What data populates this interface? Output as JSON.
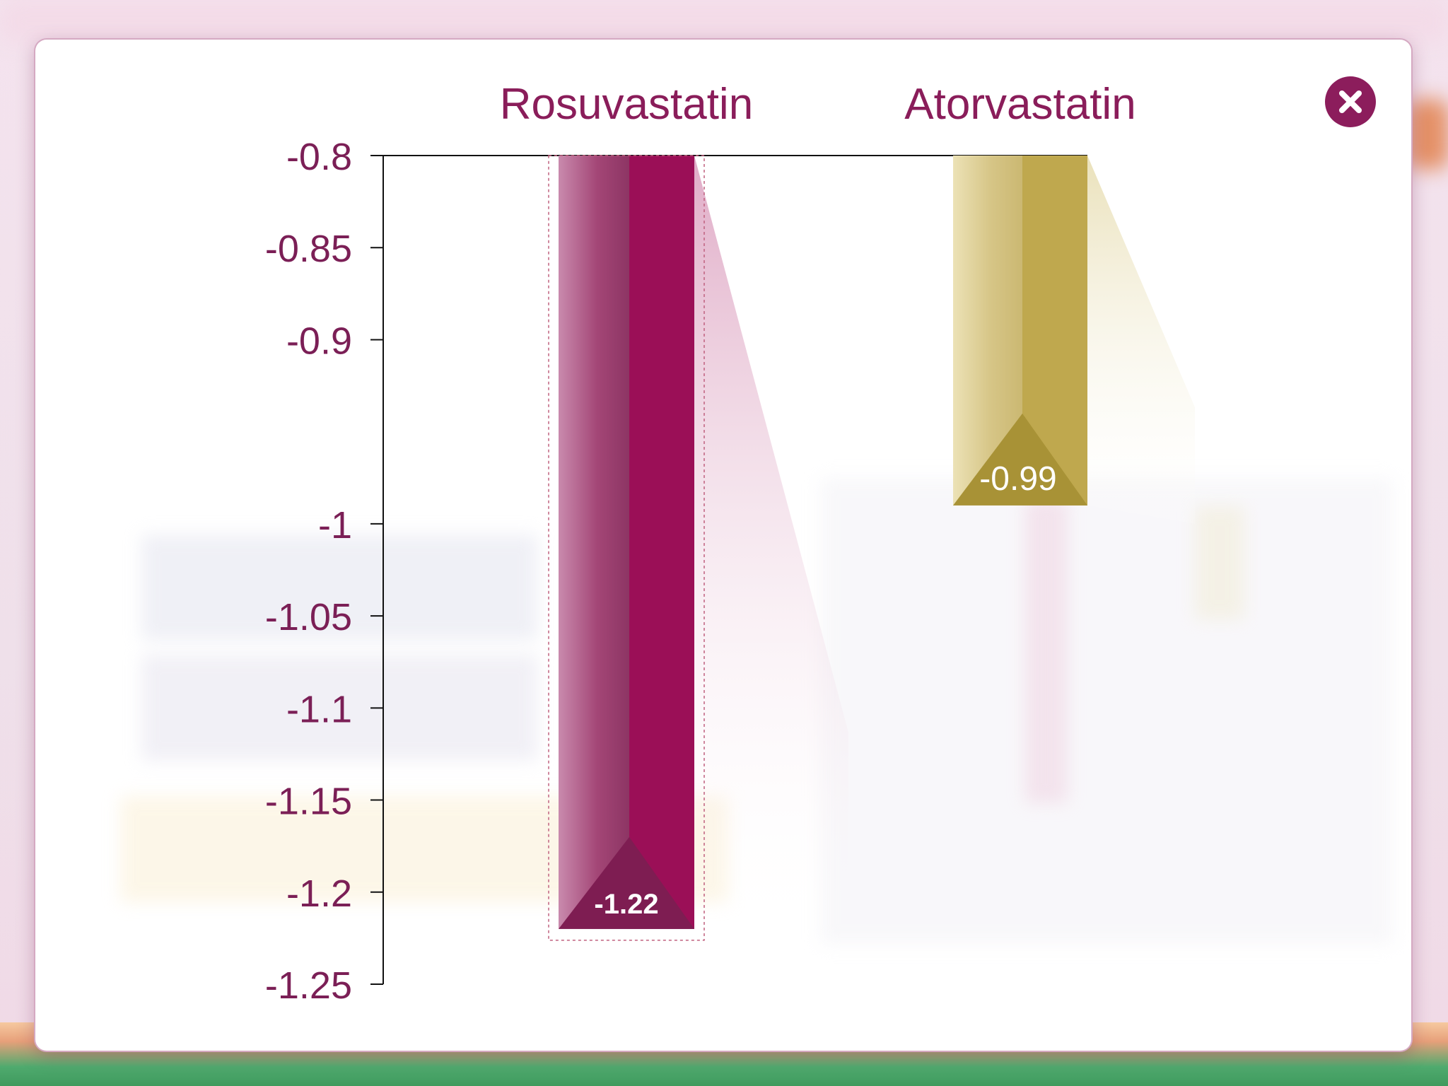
{
  "dialog": {
    "close_icon": "close-circle-icon"
  },
  "colors": {
    "rosuvastatin": "#9b0f57",
    "atorvastatin": "#bfa84e",
    "label": "#7b1f56"
  },
  "chart_data": {
    "type": "bar",
    "title": "",
    "xlabel": "",
    "ylabel": "",
    "categories": [
      "Rosuvastatin",
      "Atorvastatin"
    ],
    "values": [
      -1.22,
      -0.99
    ],
    "value_labels": [
      "-1.22",
      "-0.99"
    ],
    "ylim": [
      -0.8,
      -1.25
    ],
    "yticks": [
      -0.8,
      -0.85,
      -0.9,
      -1,
      -1.05,
      -1.1,
      -1.15,
      -1.2,
      -1.25
    ],
    "ytick_labels": [
      "-0.8",
      "-0.85",
      "-0.9",
      "-1",
      "-1.05",
      "-1.1",
      "-1.15",
      "-1.2",
      "-1.25"
    ],
    "bars_hang_from_top": true,
    "grid": false,
    "legend": "none"
  }
}
